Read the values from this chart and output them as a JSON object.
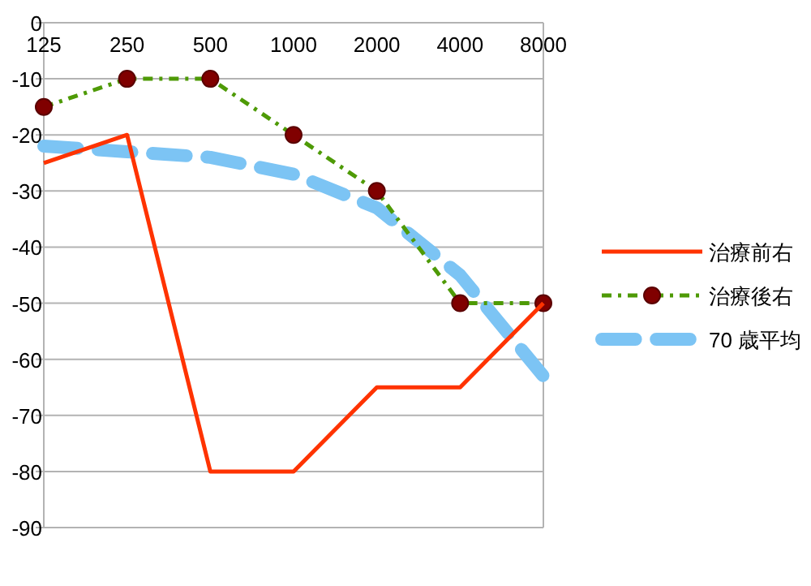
{
  "chart_data": {
    "type": "line",
    "categories": [
      "125",
      "250",
      "500",
      "1000",
      "2000",
      "4000",
      "8000"
    ],
    "ylim": [
      -90,
      0
    ],
    "yticks": [
      0,
      -10,
      -20,
      -30,
      -40,
      -50,
      -60,
      -70,
      -80,
      -90
    ],
    "grid": "y",
    "legend": "right",
    "series": [
      {
        "name": "治療前右",
        "color": "#ff3300",
        "line_style": "solid",
        "marker": "none",
        "values": [
          -25,
          -20,
          -80,
          -80,
          -65,
          -65,
          -50
        ]
      },
      {
        "name": "治療後右",
        "color": "#4e9a06",
        "line_style": "dashdot",
        "marker": "circle",
        "values": [
          -15,
          -10,
          -10,
          -20,
          -30,
          -50,
          -50
        ]
      },
      {
        "name": "70 歳平均",
        "color": "#7cc4f4",
        "line_style": "dashed",
        "marker": "none",
        "values": [
          -22,
          -23,
          -24,
          -27,
          -33,
          -45,
          -63
        ]
      }
    ]
  }
}
